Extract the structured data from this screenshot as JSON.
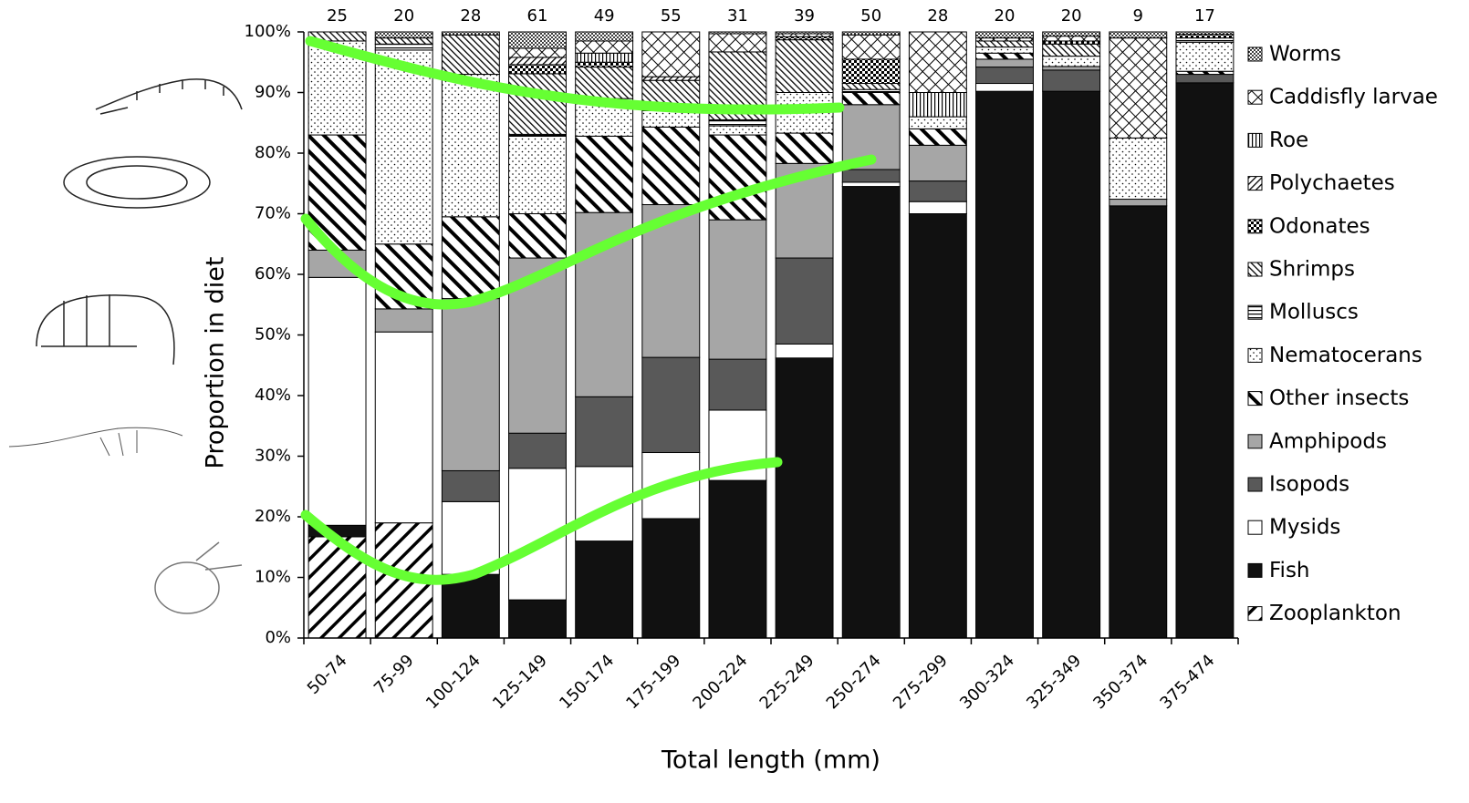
{
  "chart_data": {
    "type": "stacked_bar",
    "y_label": "Proportion in diet",
    "x_label": "Total length (mm)",
    "categories": [
      "50-74",
      "75-99",
      "100-124",
      "125-149",
      "150-174",
      "175-199",
      "200-224",
      "225-249",
      "250-274",
      "275-299",
      "300-324",
      "325-349",
      "350-374",
      "375-474"
    ],
    "sample_sizes": [
      25,
      20,
      28,
      61,
      49,
      55,
      31,
      39,
      50,
      28,
      20,
      20,
      9,
      17
    ],
    "ylim": [
      0,
      100
    ],
    "yticks": [
      {
        "value": 0,
        "label": "0%"
      },
      {
        "value": 10,
        "label": "10%"
      },
      {
        "value": 20,
        "label": "20%"
      },
      {
        "value": 30,
        "label": "30%"
      },
      {
        "value": 40,
        "label": "40%"
      },
      {
        "value": 50,
        "label": "50%"
      },
      {
        "value": 60,
        "label": "60%"
      },
      {
        "value": 70,
        "label": "70%"
      },
      {
        "value": 80,
        "label": "80%"
      },
      {
        "value": 90,
        "label": "90%"
      },
      {
        "value": 100,
        "label": "100%"
      }
    ],
    "series": [
      {
        "name": "Zooplankton",
        "color": "#000000",
        "pattern": "wide-diag",
        "values": [
          16.7,
          19,
          0,
          0,
          0,
          0,
          0,
          0,
          0,
          0,
          0,
          0,
          0,
          0
        ]
      },
      {
        "name": "Fish",
        "color": "#111111",
        "pattern": "solid",
        "values": [
          1.9,
          0,
          10.5,
          6.3,
          16,
          19.7,
          26,
          46.2,
          74.5,
          70,
          90.2,
          90.2,
          71.3,
          91.6
        ]
      },
      {
        "name": "Mysids",
        "color": "#ffffff",
        "pattern": "solid",
        "values": [
          40.9,
          31.5,
          12,
          21.7,
          12.3,
          10.9,
          11.6,
          2.3,
          0.7,
          2,
          1.3,
          0,
          0,
          0
        ]
      },
      {
        "name": "Isopods",
        "color": "#595959",
        "pattern": "solid",
        "values": [
          0,
          0,
          5.1,
          5.8,
          11.5,
          15.7,
          8.4,
          14.2,
          2.1,
          3.4,
          2.7,
          3.5,
          0,
          1.4
        ]
      },
      {
        "name": "Amphipods",
        "color": "#a6a6a6",
        "pattern": "solid",
        "values": [
          4.5,
          3.8,
          28.4,
          28.9,
          30.4,
          25.2,
          23,
          15.6,
          10.7,
          5.9,
          1.3,
          0.6,
          1.1,
          0
        ]
      },
      {
        "name": "Other insects",
        "color": "#000000",
        "pattern": "back-diag",
        "values": [
          19,
          10.7,
          13.5,
          7.3,
          12.6,
          12.8,
          14,
          5,
          2,
          2.7,
          1,
          0,
          0,
          0.5
        ]
      },
      {
        "name": "Nematocerans",
        "color": "#000000",
        "pattern": "dots",
        "values": [
          15.5,
          32,
          23.5,
          12.8,
          6.2,
          2.7,
          1.5,
          6.7,
          0,
          2,
          1,
          1.7,
          10.1,
          4.8
        ]
      },
      {
        "name": "Molluscs",
        "color": "#000000",
        "pattern": "hlines",
        "values": [
          0,
          1,
          0,
          0.3,
          0,
          0,
          1,
          0,
          0.5,
          0,
          0,
          0,
          0,
          0.7
        ]
      },
      {
        "name": "Shrimps",
        "color": "#000000",
        "pattern": "fine-back",
        "values": [
          1.5,
          1,
          6.5,
          10,
          5.2,
          5,
          11.2,
          8.7,
          1,
          0,
          1,
          2,
          0,
          0
        ]
      },
      {
        "name": "Odonates",
        "color": "#000000",
        "pattern": "check",
        "values": [
          0,
          0,
          0,
          1.5,
          0.8,
          0,
          0,
          0.5,
          4,
          0,
          0,
          0.5,
          0,
          0.6
        ]
      },
      {
        "name": "Polychaetes",
        "color": "#000000",
        "pattern": "fine-diag",
        "values": [
          0,
          0,
          0,
          1.2,
          0,
          0.6,
          0,
          0,
          0,
          0,
          0,
          0,
          0,
          0
        ]
      },
      {
        "name": "Roe",
        "color": "#000000",
        "pattern": "vlines",
        "values": [
          0,
          0,
          0,
          0,
          1.5,
          0,
          0,
          0,
          0,
          4,
          0,
          0,
          0,
          0
        ]
      },
      {
        "name": "Caddisfly larvae",
        "color": "#000000",
        "pattern": "cross",
        "values": [
          0,
          0,
          0,
          1.5,
          2,
          7.4,
          3,
          0.5,
          4,
          10,
          0.5,
          0.8,
          16.5,
          0
        ]
      },
      {
        "name": "Worms",
        "color": "#000000",
        "pattern": "dense-dots",
        "values": [
          0,
          1,
          0.5,
          2.7,
          1.5,
          0,
          0.3,
          0.3,
          0.5,
          0,
          1,
          0.7,
          1,
          0.4
        ]
      }
    ]
  }
}
